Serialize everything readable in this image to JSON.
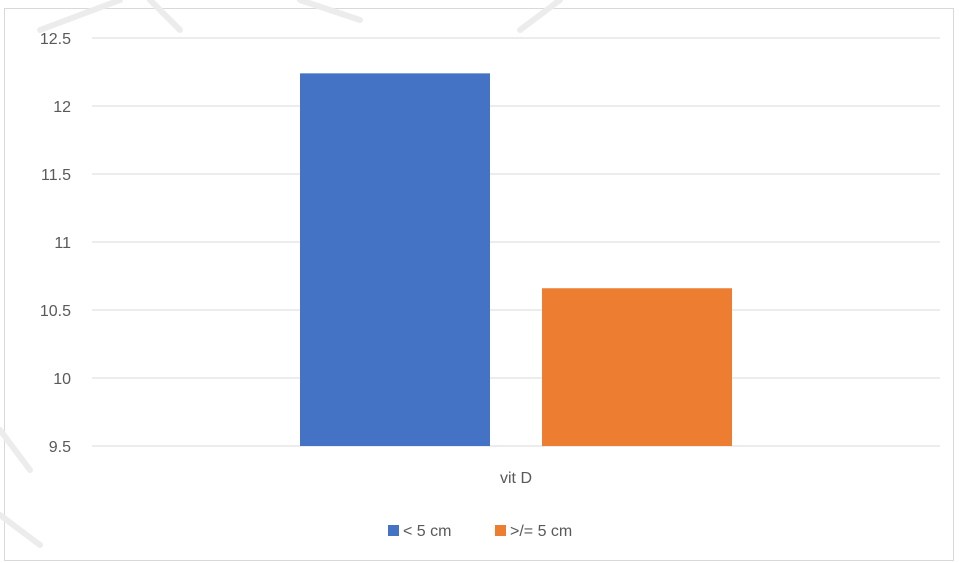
{
  "chart_data": {
    "type": "bar",
    "categories": [
      "vit D"
    ],
    "series": [
      {
        "name": "< 5 cm",
        "values": [
          12.24
        ],
        "color": "#4472C4"
      },
      {
        "name": ">/= 5 cm",
        "values": [
          10.66
        ],
        "color": "#ED7D31"
      }
    ],
    "title": "",
    "xlabel": "",
    "ylabel": "",
    "ylim": [
      9.5,
      12.5
    ],
    "yticks": [
      "12.5",
      "12",
      "11.5",
      "11",
      "10.5",
      "10",
      "9.5"
    ],
    "grid": true,
    "legend_position": "bottom"
  }
}
